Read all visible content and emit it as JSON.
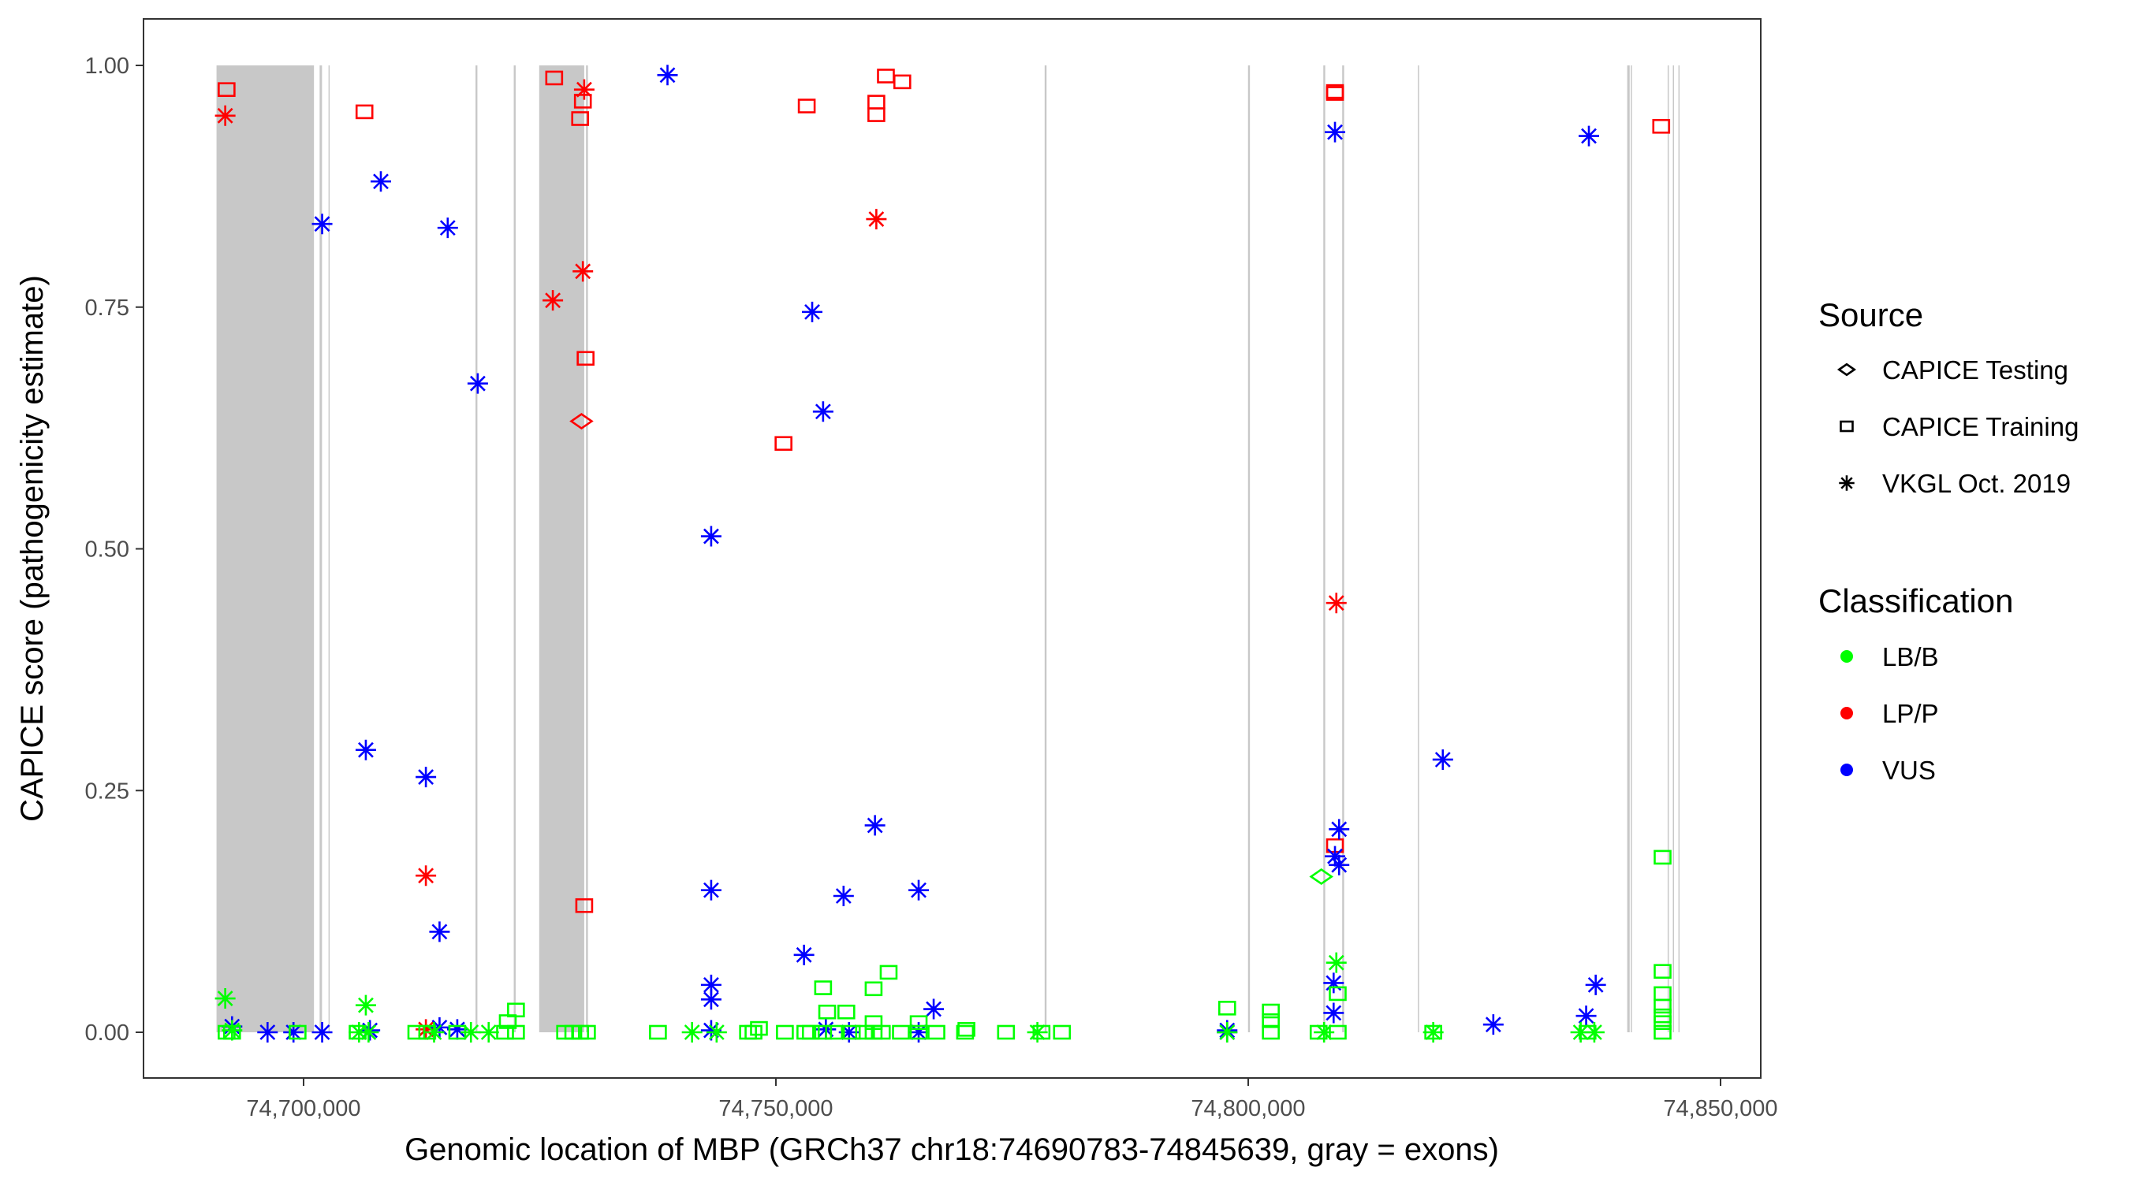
{
  "chart_data": {
    "type": "scatter",
    "xlabel": "Genomic location of MBP (GRCh37 chr18:74690783-74845639, gray = exons)",
    "ylabel": "CAPICE score (pathogenicity estimate)",
    "xlim": [
      74687000,
      74851500
    ],
    "ylim": [
      -0.027,
      1.048
    ],
    "x_ticks": [
      74700000,
      74750000,
      74800000,
      74850000
    ],
    "x_tick_labels": [
      "74,700,000",
      "74,750,000",
      "74,800,000",
      "74,850,000"
    ],
    "y_ticks": [
      0,
      0.25,
      0.5,
      0.75,
      1.0
    ],
    "y_tick_labels": [
      "0.00",
      "0.25",
      "0.50",
      "0.75",
      "1.00"
    ],
    "grid": false,
    "legend_placement": "right",
    "legend": {
      "source_title": "Source",
      "sources": [
        {
          "key": "testing",
          "label": "CAPICE Testing",
          "shape": "diamond"
        },
        {
          "key": "training",
          "label": "CAPICE Training",
          "shape": "square"
        },
        {
          "key": "vkgl",
          "label": "VKGL Oct. 2019",
          "shape": "asterisk"
        }
      ],
      "class_title": "Classification",
      "classes": [
        {
          "key": "LB/B",
          "label": "LB/B",
          "color": "#00ff00"
        },
        {
          "key": "LP/P",
          "label": "LP/P",
          "color": "#ff0000"
        },
        {
          "key": "VUS",
          "label": "VUS",
          "color": "#0000ff"
        }
      ]
    },
    "exon_color": "#c8c8c8",
    "exons": [
      [
        74690783,
        74701098
      ],
      [
        74701700,
        74701950
      ],
      [
        74702640,
        74702720
      ],
      [
        74718200,
        74718400
      ],
      [
        74722250,
        74722450
      ],
      [
        74724941,
        74729709
      ],
      [
        74729900,
        74730100
      ],
      [
        74778450,
        74778650
      ],
      [
        74799980,
        74800180
      ],
      [
        74807950,
        74808150
      ],
      [
        74809950,
        74810150
      ],
      [
        74817960,
        74818040
      ],
      [
        74840120,
        74840380
      ],
      [
        74840500,
        74840560
      ],
      [
        74844400,
        74844480
      ],
      [
        74844950,
        74845060
      ],
      [
        74845540,
        74845639
      ]
    ],
    "point_columns": [
      "x",
      "score",
      "source",
      "classification"
    ],
    "points": [
      [
        74691850,
        0.975,
        "training",
        "LP/P"
      ],
      [
        74691706,
        0.948,
        "vkgl",
        "LP/P"
      ],
      [
        74706445,
        0.952,
        "training",
        "LP/P"
      ],
      [
        74726530,
        0.987,
        "training",
        "LP/P"
      ],
      [
        74729709,
        0.975,
        "vkgl",
        "LP/P"
      ],
      [
        74729565,
        0.963,
        "training",
        "LP/P"
      ],
      [
        74729276,
        0.945,
        "training",
        "LP/P"
      ],
      [
        74729565,
        0.787,
        "vkgl",
        "LP/P"
      ],
      [
        74726386,
        0.757,
        "vkgl",
        "LP/P"
      ],
      [
        74729854,
        0.697,
        "training",
        "LP/P"
      ],
      [
        74729420,
        0.632,
        "testing",
        "LP/P"
      ],
      [
        74729709,
        0.131,
        "training",
        "LP/P"
      ],
      [
        74712947,
        0.162,
        "vkgl",
        "LP/P"
      ],
      [
        74712947,
        0.003,
        "vkgl",
        "LP/P"
      ],
      [
        74753263,
        0.958,
        "training",
        "LP/P"
      ],
      [
        74761644,
        0.989,
        "training",
        "LP/P"
      ],
      [
        74763378,
        0.983,
        "training",
        "LP/P"
      ],
      [
        74760632,
        0.962,
        "training",
        "LP/P"
      ],
      [
        74760632,
        0.949,
        "training",
        "LP/P"
      ],
      [
        74760632,
        0.841,
        "vkgl",
        "LP/P"
      ],
      [
        74750806,
        0.609,
        "training",
        "LP/P"
      ],
      [
        74809184,
        0.973,
        "training",
        "LP/P"
      ],
      [
        74809184,
        0.971,
        "training",
        "LP/P"
      ],
      [
        74809329,
        0.444,
        "vkgl",
        "LP/P"
      ],
      [
        74809184,
        0.193,
        "training",
        "LP/P"
      ],
      [
        74843720,
        0.937,
        "training",
        "LP/P"
      ],
      [
        74738524,
        0.99,
        "vkgl",
        "VUS"
      ],
      [
        74701965,
        0.836,
        "vkgl",
        "VUS"
      ],
      [
        74708179,
        0.88,
        "vkgl",
        "VUS"
      ],
      [
        74715259,
        0.832,
        "vkgl",
        "VUS"
      ],
      [
        74718438,
        0.671,
        "vkgl",
        "VUS"
      ],
      [
        74753841,
        0.745,
        "vkgl",
        "VUS"
      ],
      [
        74754997,
        0.642,
        "vkgl",
        "VUS"
      ],
      [
        74743148,
        0.513,
        "vkgl",
        "VUS"
      ],
      [
        74706589,
        0.292,
        "vkgl",
        "VUS"
      ],
      [
        74712947,
        0.264,
        "vkgl",
        "VUS"
      ],
      [
        74714392,
        0.104,
        "vkgl",
        "VUS"
      ],
      [
        74760488,
        0.214,
        "vkgl",
        "VUS"
      ],
      [
        74743148,
        0.147,
        "vkgl",
        "VUS"
      ],
      [
        74757164,
        0.141,
        "vkgl",
        "VUS"
      ],
      [
        74765112,
        0.147,
        "vkgl",
        "VUS"
      ],
      [
        74752974,
        0.08,
        "vkgl",
        "VUS"
      ],
      [
        74743148,
        0.049,
        "vkgl",
        "VUS"
      ],
      [
        74743148,
        0.034,
        "vkgl",
        "VUS"
      ],
      [
        74766701,
        0.024,
        "vkgl",
        "VUS"
      ],
      [
        74809184,
        0.931,
        "vkgl",
        "VUS"
      ],
      [
        74836061,
        0.927,
        "vkgl",
        "VUS"
      ],
      [
        74820600,
        0.282,
        "vkgl",
        "VUS"
      ],
      [
        74809618,
        0.21,
        "vkgl",
        "VUS"
      ],
      [
        74809184,
        0.182,
        "vkgl",
        "VUS"
      ],
      [
        74809618,
        0.173,
        "vkgl",
        "VUS"
      ],
      [
        74809040,
        0.051,
        "vkgl",
        "VUS"
      ],
      [
        74809040,
        0.02,
        "vkgl",
        "VUS"
      ],
      [
        74836784,
        0.049,
        "vkgl",
        "VUS"
      ],
      [
        74835772,
        0.017,
        "vkgl",
        "VUS"
      ],
      [
        74825946,
        0.008,
        "vkgl",
        "VUS"
      ],
      [
        74692428,
        0.006,
        "vkgl",
        "VUS"
      ],
      [
        74696185,
        0.0,
        "vkgl",
        "VUS"
      ],
      [
        74698931,
        0.0,
        "vkgl",
        "VUS"
      ],
      [
        74701965,
        0.0,
        "vkgl",
        "VUS"
      ],
      [
        74707023,
        0.002,
        "vkgl",
        "VUS"
      ],
      [
        74714392,
        0.005,
        "vkgl",
        "VUS"
      ],
      [
        74716271,
        0.003,
        "vkgl",
        "VUS"
      ],
      [
        74743148,
        0.002,
        "vkgl",
        "VUS"
      ],
      [
        74755286,
        0.003,
        "vkgl",
        "VUS"
      ],
      [
        74757742,
        0.0,
        "vkgl",
        "VUS"
      ],
      [
        74765112,
        0.0,
        "vkgl",
        "VUS"
      ],
      [
        74797769,
        0.002,
        "vkgl",
        "VUS"
      ],
      [
        74797769,
        0.0,
        "vkgl",
        "VUS"
      ],
      [
        74691706,
        0.035,
        "vkgl",
        "LB/B"
      ],
      [
        74706589,
        0.028,
        "vkgl",
        "LB/B"
      ],
      [
        74809329,
        0.072,
        "vkgl",
        "LB/B"
      ],
      [
        74722484,
        0.023,
        "training",
        "LB/B"
      ],
      [
        74721617,
        0.011,
        "training",
        "LB/B"
      ],
      [
        74754997,
        0.046,
        "training",
        "LB/B"
      ],
      [
        74755430,
        0.021,
        "training",
        "LB/B"
      ],
      [
        74760343,
        0.045,
        "training",
        "LB/B"
      ],
      [
        74761933,
        0.062,
        "training",
        "LB/B"
      ],
      [
        74757453,
        0.021,
        "training",
        "LB/B"
      ],
      [
        74760343,
        0.01,
        "training",
        "LB/B"
      ],
      [
        74765112,
        0.01,
        "training",
        "LB/B"
      ],
      [
        74797769,
        0.025,
        "training",
        "LB/B"
      ],
      [
        74802393,
        0.022,
        "training",
        "LB/B"
      ],
      [
        74802393,
        0.012,
        "training",
        "LB/B"
      ],
      [
        74809473,
        0.04,
        "training",
        "LB/B"
      ],
      [
        74843864,
        0.181,
        "training",
        "LB/B"
      ],
      [
        74843864,
        0.063,
        "training",
        "LB/B"
      ],
      [
        74843864,
        0.04,
        "training",
        "LB/B"
      ],
      [
        74843864,
        0.027,
        "training",
        "LB/B"
      ],
      [
        74843864,
        0.017,
        "training",
        "LB/B"
      ],
      [
        74843864,
        0.01,
        "training",
        "LB/B"
      ],
      [
        74807739,
        0.161,
        "testing",
        "LB/B"
      ],
      [
        74691850,
        0.0,
        "training",
        "LB/B"
      ],
      [
        74692428,
        0.0,
        "training",
        "LB/B"
      ],
      [
        74699364,
        0.0,
        "training",
        "LB/B"
      ],
      [
        74705722,
        0.0,
        "training",
        "LB/B"
      ],
      [
        74711936,
        0.0,
        "training",
        "LB/B"
      ],
      [
        74713092,
        0.0,
        "training",
        "LB/B"
      ],
      [
        74716271,
        0.0,
        "training",
        "LB/B"
      ],
      [
        74721328,
        0.0,
        "training",
        "LB/B"
      ],
      [
        74722484,
        0.0,
        "training",
        "LB/B"
      ],
      [
        74727686,
        0.0,
        "training",
        "LB/B"
      ],
      [
        74728553,
        0.0,
        "training",
        "LB/B"
      ],
      [
        74729276,
        0.0,
        "training",
        "LB/B"
      ],
      [
        74729998,
        0.0,
        "training",
        "LB/B"
      ],
      [
        74737512,
        0.0,
        "training",
        "LB/B"
      ],
      [
        74747049,
        0.0,
        "training",
        "LB/B"
      ],
      [
        74747627,
        0.0,
        "training",
        "LB/B"
      ],
      [
        74748205,
        0.004,
        "training",
        "LB/B"
      ],
      [
        74750951,
        0.0,
        "training",
        "LB/B"
      ],
      [
        74753118,
        0.0,
        "training",
        "LB/B"
      ],
      [
        74753696,
        0.0,
        "training",
        "LB/B"
      ],
      [
        74754997,
        0.0,
        "training",
        "LB/B"
      ],
      [
        74756153,
        0.0,
        "training",
        "LB/B"
      ],
      [
        74758031,
        0.0,
        "training",
        "LB/B"
      ],
      [
        74759332,
        0.0,
        "training",
        "LB/B"
      ],
      [
        74760343,
        0.0,
        "training",
        "LB/B"
      ],
      [
        74761210,
        0.0,
        "training",
        "LB/B"
      ],
      [
        74763233,
        0.0,
        "training",
        "LB/B"
      ],
      [
        74765112,
        0.0,
        "training",
        "LB/B"
      ],
      [
        74766990,
        0.0,
        "training",
        "LB/B"
      ],
      [
        74770025,
        0.0,
        "training",
        "LB/B"
      ],
      [
        74770169,
        0.003,
        "training",
        "LB/B"
      ],
      [
        74774360,
        0.0,
        "training",
        "LB/B"
      ],
      [
        74778117,
        0.0,
        "training",
        "LB/B"
      ],
      [
        74780284,
        0.0,
        "training",
        "LB/B"
      ],
      [
        74802393,
        0.0,
        "training",
        "LB/B"
      ],
      [
        74807450,
        0.0,
        "training",
        "LB/B"
      ],
      [
        74809473,
        0.0,
        "training",
        "LB/B"
      ],
      [
        74819588,
        0.0,
        "training",
        "LB/B"
      ],
      [
        74835917,
        0.0,
        "training",
        "LB/B"
      ],
      [
        74843864,
        0.0,
        "training",
        "LB/B"
      ],
      [
        74692428,
        0.002,
        "vkgl",
        "LB/B"
      ],
      [
        74705867,
        0.0,
        "vkgl",
        "LB/B"
      ],
      [
        74706878,
        0.0,
        "vkgl",
        "LB/B"
      ],
      [
        74713814,
        0.0,
        "vkgl",
        "LB/B"
      ],
      [
        74717716,
        0.0,
        "vkgl",
        "LB/B"
      ],
      [
        74719594,
        0.0,
        "vkgl",
        "LB/B"
      ],
      [
        74741125,
        0.0,
        "vkgl",
        "LB/B"
      ],
      [
        74743726,
        0.0,
        "vkgl",
        "LB/B"
      ],
      [
        74777683,
        0.0,
        "vkgl",
        "LB/B"
      ],
      [
        74797769,
        0.0,
        "vkgl",
        "LB/B"
      ],
      [
        74808028,
        0.0,
        "vkgl",
        "LB/B"
      ],
      [
        74819588,
        0.0,
        "vkgl",
        "LB/B"
      ],
      [
        74835194,
        0.0,
        "vkgl",
        "LB/B"
      ],
      [
        74836639,
        0.0,
        "vkgl",
        "LB/B"
      ]
    ]
  }
}
